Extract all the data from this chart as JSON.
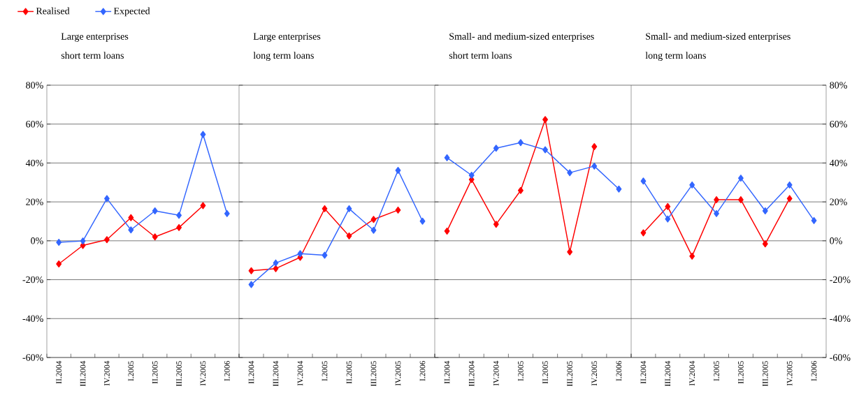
{
  "chart_data": [
    {
      "type": "line",
      "title": "Large enterprises",
      "subtitle": "short term loans",
      "categories": [
        "II.2004",
        "III.2004",
        "IV.2004",
        "I.2005",
        "II.2005",
        "III.2005",
        "IV.2005",
        "I.2006"
      ],
      "series": [
        {
          "name": "Realised",
          "color": "#ff0000",
          "values": [
            -11.9,
            -2.4,
            0.6,
            11.9,
            2.0,
            6.8,
            18.1,
            null
          ]
        },
        {
          "name": "Expected",
          "color": "#3366ff",
          "values": [
            -0.8,
            -0.1,
            21.7,
            5.6,
            15.4,
            13.1,
            54.7,
            14.0
          ]
        }
      ],
      "ylim": [
        -60,
        80
      ],
      "yticks": [
        {
          "value": -60,
          "label": "-60%"
        },
        {
          "value": -40,
          "label": "-40%"
        },
        {
          "value": -20,
          "label": "-20%"
        },
        {
          "value": 0,
          "label": "0%"
        },
        {
          "value": 20,
          "label": "20%"
        },
        {
          "value": 40,
          "label": "40%"
        },
        {
          "value": 60,
          "label": "60%"
        },
        {
          "value": 80,
          "label": "80%"
        }
      ],
      "grid": "y",
      "marker": "diamond",
      "line_style": "solid",
      "legend": "top left"
    },
    {
      "type": "line",
      "title": "Large enterprises",
      "subtitle": "long term loans",
      "categories": [
        "II.2004",
        "III.2004",
        "IV.2004",
        "I.2005",
        "II.2005",
        "III.2005",
        "IV.2005",
        "I.2006"
      ],
      "series": [
        {
          "color": "#ff0000",
          "values": [
            -15.4,
            -14.3,
            -8.5,
            16.5,
            2.5,
            11.0,
            15.8,
            null
          ]
        },
        {
          "color": "#3366ff",
          "values": [
            -22.5,
            -11.4,
            -6.6,
            -7.4,
            16.5,
            5.4,
            36.2,
            10.1
          ]
        }
      ],
      "ylim": [
        -60,
        80
      ],
      "yticks": [
        -60,
        -40,
        -20,
        0,
        20,
        40,
        60,
        80
      ],
      "grid": "y",
      "marker": "diamond",
      "line_style": "solid",
      "tick_labels": "x"
    },
    {
      "type": "line",
      "title": "Small- and medium-sized enterprises",
      "subtitle": "short term loans",
      "categories": [
        "II.2004",
        "III.2004",
        "IV.2004",
        "I.2005",
        "II.2005",
        "III.2005",
        "IV.2005",
        "I.2006"
      ],
      "series": [
        {
          "color": "#ff0000",
          "values": [
            5.0,
            31.5,
            8.5,
            25.9,
            62.3,
            -5.7,
            48.4,
            null
          ]
        },
        {
          "color": "#3366ff",
          "values": [
            42.7,
            33.7,
            47.6,
            50.5,
            46.8,
            35.0,
            38.4,
            26.6
          ]
        }
      ],
      "ylim": [
        -60,
        80
      ],
      "yticks": [
        -60,
        -40,
        -20,
        0,
        20,
        40,
        60,
        80
      ],
      "grid": "y",
      "marker": "diamond",
      "line_style": "solid",
      "tick_labels": "x"
    },
    {
      "type": "line",
      "title": "Small- and medium-sized enterprises",
      "subtitle": "long term loans",
      "categories": [
        "II.2004",
        "III.2004",
        "IV.2004",
        "I.2005",
        "II.2005",
        "III.2005",
        "IV.2005",
        "I.2006"
      ],
      "series": [
        {
          "color": "#ff0000",
          "values": [
            4.1,
            17.6,
            -7.9,
            21.1,
            21.1,
            -1.6,
            21.7,
            null
          ]
        },
        {
          "color": "#3366ff",
          "values": [
            30.7,
            11.2,
            28.7,
            14.0,
            32.2,
            15.4,
            28.7,
            10.4
          ]
        }
      ],
      "ylim": [
        -60,
        80
      ],
      "yticks": [
        {
          "value": -60,
          "label": "-60%"
        },
        {
          "value": -40,
          "label": "-40%"
        },
        {
          "value": -20,
          "label": "-20%"
        },
        {
          "value": 0,
          "label": "0%"
        },
        {
          "value": 20,
          "label": "20%"
        },
        {
          "value": 40,
          "label": "40%"
        },
        {
          "value": 60,
          "label": "60%"
        },
        {
          "value": 80,
          "label": "80%"
        }
      ],
      "grid": "y",
      "marker": "diamond",
      "line_style": "solid"
    }
  ]
}
